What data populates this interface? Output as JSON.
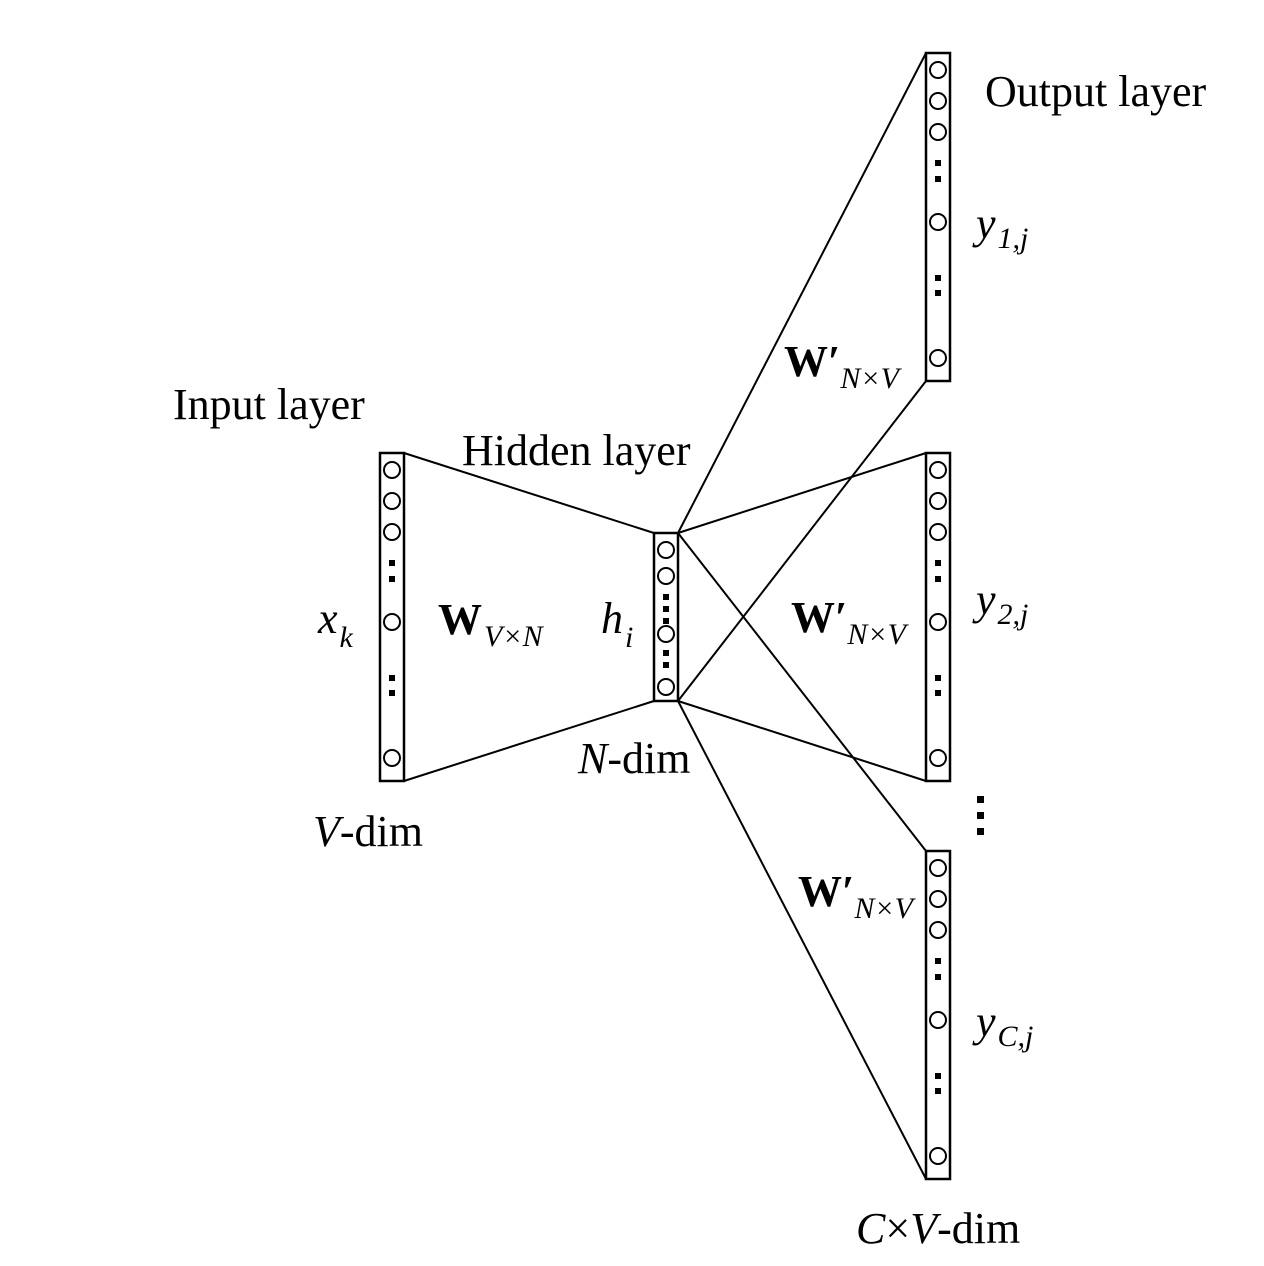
{
  "labels": {
    "input_layer": "Input layer",
    "hidden_layer": "Hidden layer",
    "output_layer": "Output layer",
    "v_dim_var": "V",
    "v_dim_suffix": "-dim",
    "n_dim_var": "N",
    "n_dim_suffix": "-dim",
    "cv_dim_c": "C",
    "cv_dim_times": "×",
    "cv_dim_v": "V",
    "cv_dim_suffix": "-dim",
    "x_var": "x",
    "x_sub": "k",
    "h_var": "h",
    "h_sub": "i",
    "w_in": "W",
    "w_in_sub": "V×N",
    "w_out": "W′",
    "w_out_sub": "N×V",
    "y1_var": "y",
    "y1_sub": "1,j",
    "y2_var": "y",
    "y2_sub": "2,j",
    "yc_var": "y",
    "yc_sub": "C,j"
  },
  "colors": {
    "stroke": "#000000",
    "background": "#ffffff"
  }
}
